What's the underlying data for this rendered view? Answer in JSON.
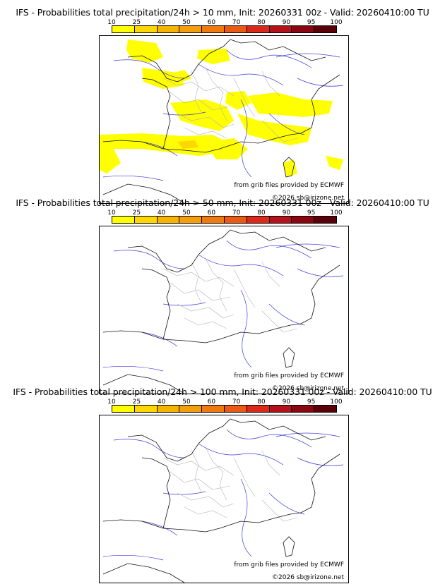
{
  "colorbar": {
    "ticks": [
      "10",
      "25",
      "40",
      "50",
      "60",
      "70",
      "80",
      "90",
      "95",
      "100"
    ],
    "colors": [
      "#ffff00",
      "#ffd700",
      "#f4b400",
      "#f59e0b",
      "#f07a10",
      "#e95a15",
      "#dc2a1a",
      "#b5111a",
      "#8a0712",
      "#5a0008"
    ]
  },
  "panels": [
    {
      "title": "IFS - Probabilities total precipitation/24h > 10 mm, Init: 20260331 00z - Valid: 20260410:00 TU",
      "source": "from grib files provided by ECMWF",
      "copyright": "©2026 sb@irizone.net",
      "precip_probability": "10-25"
    },
    {
      "title": "IFS - Probabilities total precipitation/24h > 50 mm, Init: 20260331 00z - Valid: 20260410:00 TU",
      "source": "from grib files provided by ECMWF",
      "copyright": "©2026 sb@irizone.net",
      "precip_probability": "none"
    },
    {
      "title": "IFS - Probabilities total precipitation/24h > 100 mm, Init: 20260331 00z - Valid: 20260410:00 TU",
      "source": "from grib files provided by ECMWF",
      "copyright": "©2026 sb@irizone.net",
      "precip_probability": "none"
    }
  ]
}
